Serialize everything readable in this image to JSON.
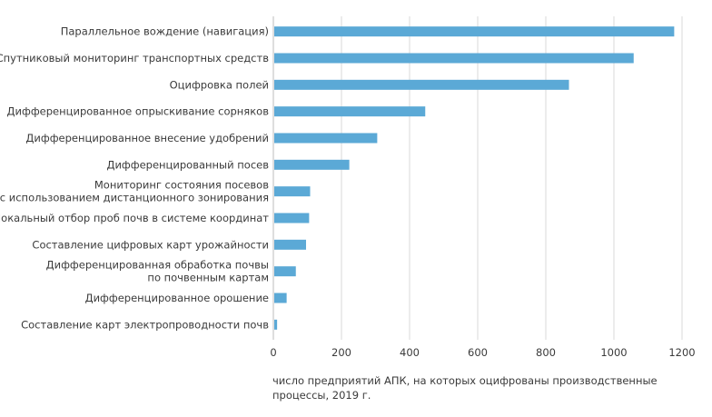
{
  "chart_data": {
    "type": "bar",
    "orientation": "horizontal",
    "title": "",
    "categories": [
      [
        "Параллельное вождение (навигация)"
      ],
      [
        "Спутниковый мониторинг транспортных средств"
      ],
      [
        "Оцифровка полей"
      ],
      [
        "Дифференцированное опрыскивание сорняков"
      ],
      [
        "Дифференцированное внесение удобрений"
      ],
      [
        "Дифференцированный посев"
      ],
      [
        "Мониторинг состояния посевов",
        "с использованием дистанционного зонирования"
      ],
      [
        "Локальный отбор проб почв в системе координат"
      ],
      [
        "Составление цифровых карт урожайности"
      ],
      [
        "Дифференцированная обработка почвы",
        "по почвенным картам"
      ],
      [
        "Дифференцированное орошение"
      ],
      [
        "Составление карт электропроводности почв"
      ]
    ],
    "values": [
      1177,
      1058,
      868,
      446,
      305,
      223,
      108,
      105,
      96,
      66,
      39,
      11
    ],
    "xlim": [
      0,
      1200
    ],
    "xticks": [
      "0",
      "200",
      "400",
      "600",
      "800",
      "1000",
      "1200"
    ],
    "xlabel": "число предприятий АПК, на которых оцифрованы производственные процессы, 2019 г.",
    "ylabel": "",
    "grid": "vertical",
    "bar_color": "#5ba9d6",
    "grid_color": "#d9d9d9",
    "axis_color": "#bdbdbd"
  }
}
